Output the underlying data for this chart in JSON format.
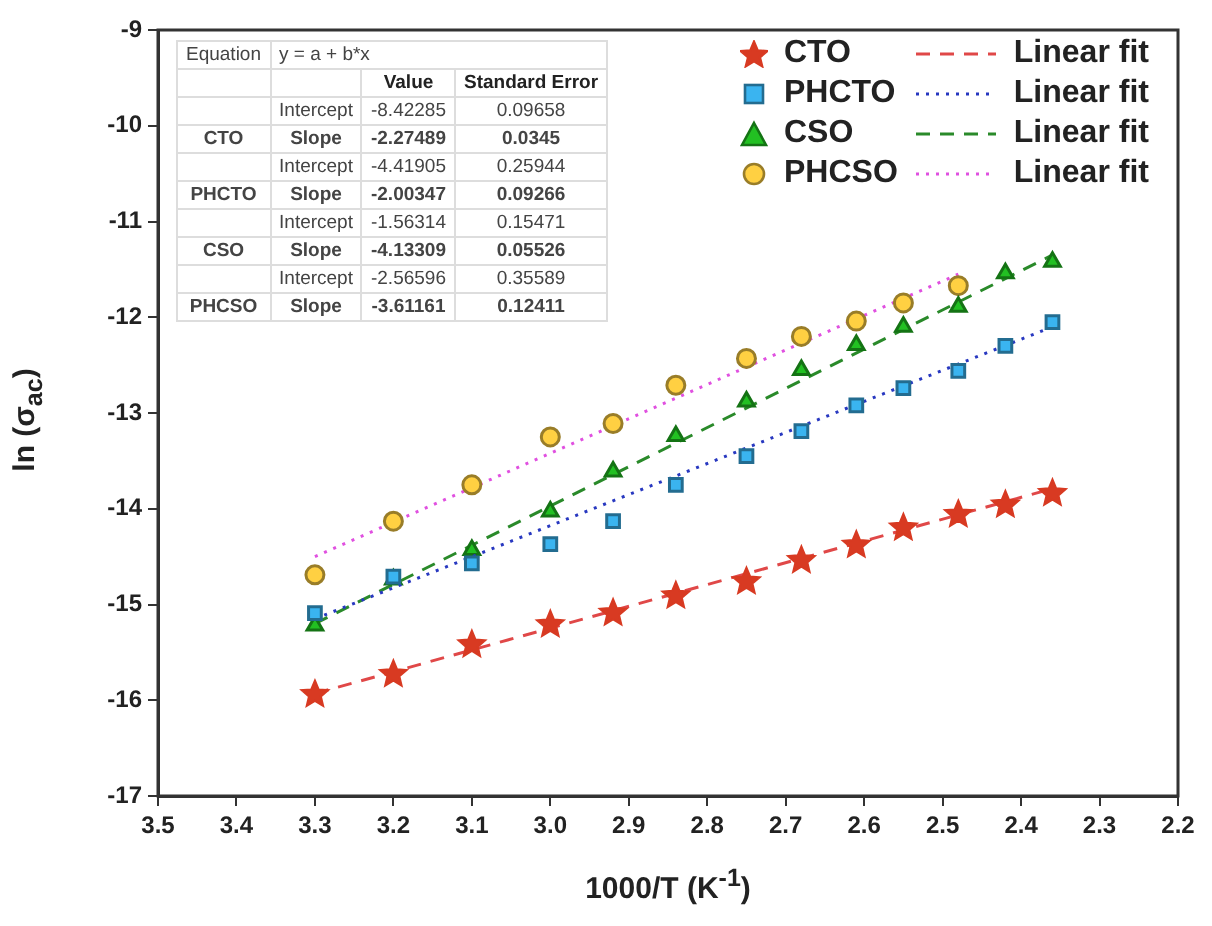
{
  "chart_data": {
    "type": "scatter",
    "xlabel": "1000/T (K$^{-1}$)",
    "ylabel": "ln (σ$_{ac}$)",
    "xlim": [
      3.5,
      2.2
    ],
    "xticks": [
      {
        "value": 3.5,
        "label": "3.5"
      },
      {
        "value": 3.4,
        "label": "3.4"
      },
      {
        "value": 3.3,
        "label": "3.3"
      },
      {
        "value": 3.2,
        "label": "3.2"
      },
      {
        "value": 3.1,
        "label": "3.1"
      },
      {
        "value": 3.0,
        "label": "3.0"
      },
      {
        "value": 2.9,
        "label": "2.9"
      },
      {
        "value": 2.8,
        "label": "2.8"
      },
      {
        "value": 2.7,
        "label": "2.7"
      },
      {
        "value": 2.6,
        "label": "2.6"
      },
      {
        "value": 2.5,
        "label": "2.5"
      },
      {
        "value": 2.4,
        "label": "2.4"
      },
      {
        "value": 2.3,
        "label": "2.3"
      },
      {
        "value": 2.2,
        "label": "2.2"
      }
    ],
    "ylim": [
      -17,
      -9
    ],
    "yticks": [
      -17,
      -16,
      -15,
      -14,
      -13,
      -12,
      -11,
      -10,
      -9
    ],
    "grid": false,
    "legend": "top right",
    "x": [
      3.3,
      3.2,
      3.1,
      3.0,
      2.92,
      2.84,
      2.75,
      2.68,
      2.61,
      2.55,
      2.48,
      2.42,
      2.36
    ],
    "series": [
      {
        "name": "CTO",
        "marker": "star",
        "color": "#d83a22",
        "values": [
          -15.94,
          -15.73,
          -15.42,
          -15.21,
          -15.09,
          -14.91,
          -14.76,
          -14.54,
          -14.38,
          -14.2,
          -14.06,
          -13.96,
          -13.84
        ]
      },
      {
        "name": "Linear fit",
        "type": "line",
        "line_style": "dashed",
        "marker": "none",
        "color": "#e04848",
        "x": [
          3.3,
          2.36
        ],
        "values": [
          -15.93,
          -13.79
        ]
      },
      {
        "name": "PHCTO",
        "marker": "square",
        "color": "#3ab4f0",
        "values": [
          -15.09,
          -14.71,
          -14.57,
          -14.37,
          -14.13,
          -13.75,
          -13.45,
          -13.19,
          -12.92,
          -12.74,
          -12.56,
          -12.3,
          -12.05
        ]
      },
      {
        "name": "Linear fit",
        "type": "line",
        "line_style": "dotted",
        "marker": "none",
        "color": "#2838c0",
        "x": [
          3.3,
          2.36
        ],
        "values": [
          -15.15,
          -12.1
        ]
      },
      {
        "name": "CSO",
        "marker": "triangle",
        "color": "#22c022",
        "values": [
          -15.22,
          -14.74,
          -14.43,
          -14.03,
          -13.61,
          -13.24,
          -12.88,
          -12.55,
          -12.29,
          -12.1,
          -11.89,
          -11.54,
          -11.42
        ]
      },
      {
        "name": "Linear fit",
        "type": "line",
        "line_style": "dashed",
        "marker": "none",
        "color": "#2a8a2a",
        "x": [
          3.3,
          2.36
        ],
        "values": [
          -15.2,
          -11.35
        ]
      },
      {
        "name": "PHCSO",
        "marker": "circle",
        "color": "#ffd042",
        "values": [
          -14.69,
          -14.13,
          -13.75,
          -13.25,
          -13.11,
          -12.71,
          -12.43,
          -12.2,
          -12.04,
          -11.85,
          -11.67,
          null,
          null
        ]
      },
      {
        "name": "Linear fit",
        "type": "line",
        "line_style": "dotted",
        "marker": "none",
        "color": "#e050e0",
        "x": [
          3.3,
          2.48
        ],
        "values": [
          -14.5,
          -11.55
        ]
      }
    ],
    "annotations": [
      "Equation",
      "y = a + b*x",
      "Value",
      "Standard Error",
      "Intercept",
      "-8.42285",
      "0.09658",
      "CTO",
      "Slope",
      "-2.27489",
      "0.0345",
      "Intercept",
      "-4.41905",
      "0.25944",
      "PHCTO",
      "Slope",
      "-2.00347",
      "0.09266",
      "Intercept",
      "-1.56314",
      "0.15471",
      "CSO",
      "Slope",
      "-4.13309",
      "0.05526",
      "Intercept",
      "-2.56596",
      "0.35589",
      "PHCSO",
      "Slope",
      "-3.61161",
      "0.12411"
    ]
  }
}
